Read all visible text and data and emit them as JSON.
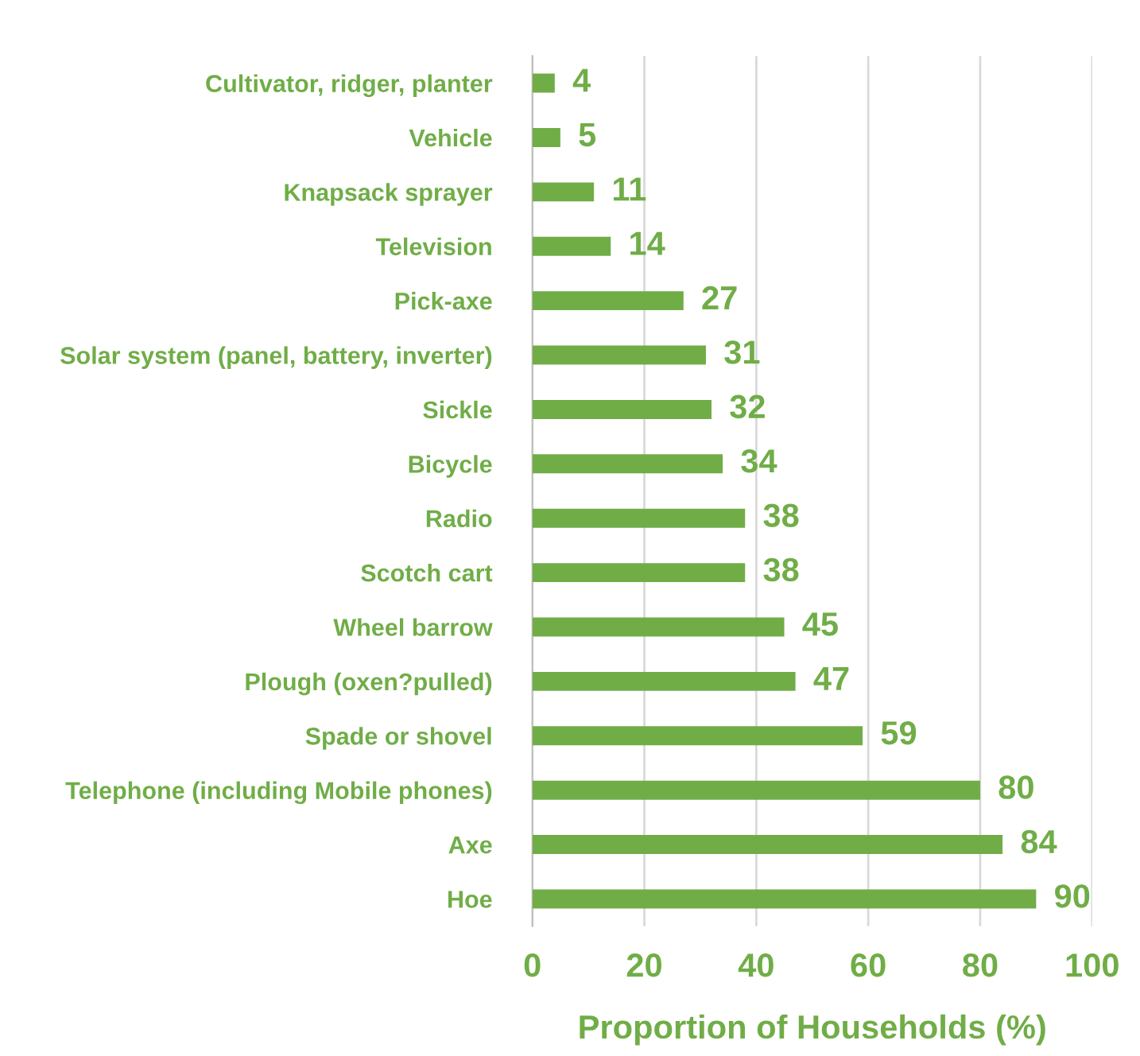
{
  "chart_data": {
    "type": "bar",
    "orientation": "horizontal",
    "xlabel": "Proportion of Households (%)",
    "categories": [
      "Cultivator, ridger, planter",
      "Vehicle",
      "Knapsack sprayer",
      "Television",
      "Pick-axe",
      "Solar system (panel, battery, inverter)",
      "Sickle",
      "Bicycle",
      "Radio",
      "Scotch cart",
      "Wheel barrow",
      "Plough (oxen?pulled)",
      "Spade or shovel",
      "Telephone (including Mobile phones)",
      "Axe",
      "Hoe"
    ],
    "values": [
      4,
      5,
      11,
      14,
      27,
      31,
      32,
      34,
      38,
      38,
      45,
      47,
      59,
      80,
      84,
      90
    ],
    "color": "#70ad47",
    "xlim": [
      0,
      100
    ],
    "xticks": [
      0,
      20,
      40,
      60,
      80,
      100
    ],
    "grid": "x",
    "data_labels": true
  }
}
